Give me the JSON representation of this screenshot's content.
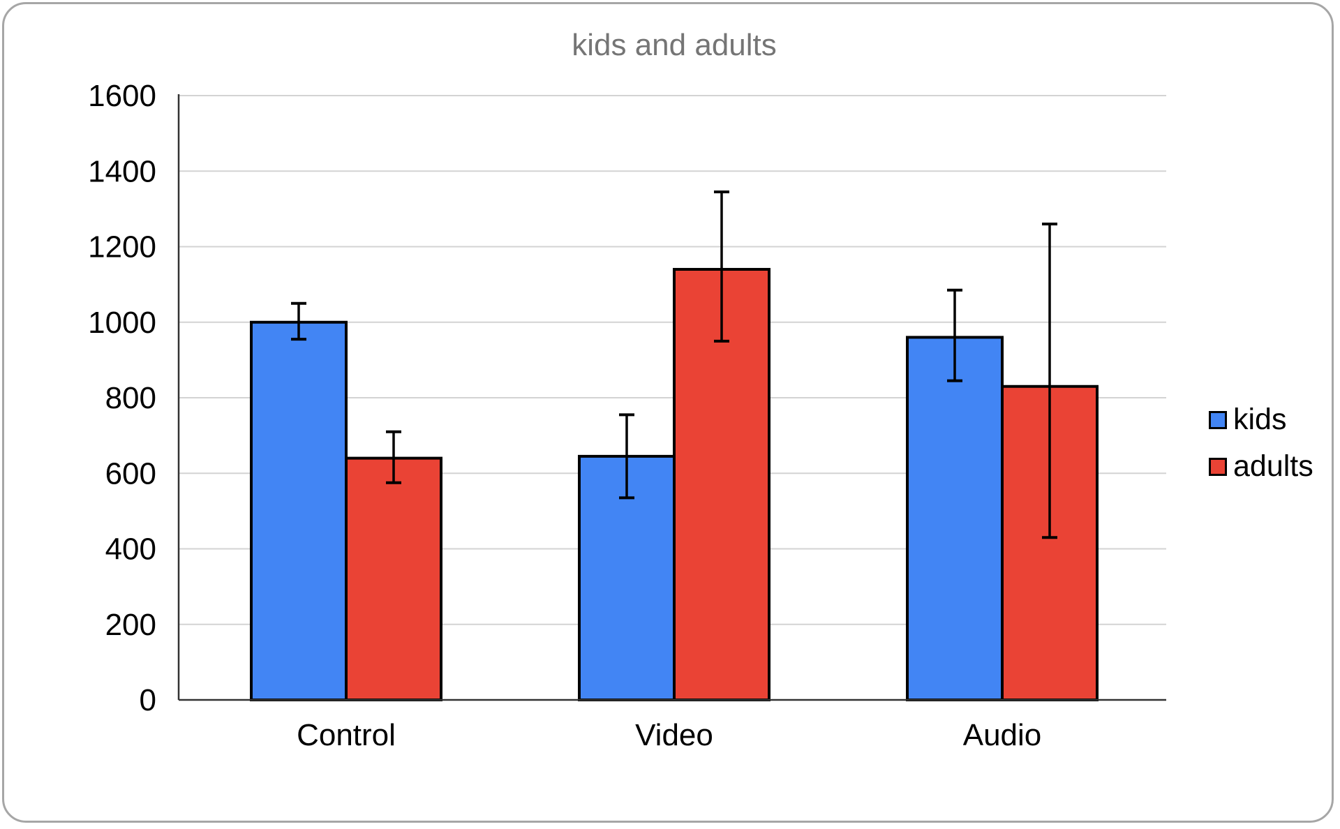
{
  "chart_data": {
    "type": "bar",
    "title": "kids and adults",
    "xlabel": "",
    "ylabel": "",
    "categories": [
      "Control",
      "Video",
      "Audio"
    ],
    "series": [
      {
        "name": "kids",
        "color": "#4285F4",
        "values": [
          1000,
          645,
          960
        ],
        "error_high": [
          1050,
          755,
          1085
        ],
        "error_low": [
          955,
          535,
          845
        ]
      },
      {
        "name": "adults",
        "color": "#EA4335",
        "values": [
          640,
          1140,
          830
        ],
        "error_high": [
          710,
          1345,
          1260
        ],
        "error_low": [
          575,
          950,
          430
        ]
      }
    ],
    "ylim": [
      0,
      1600
    ],
    "ytick_interval": 200,
    "ytick_labels": [
      "0",
      "200",
      "400",
      "600",
      "800",
      "1000",
      "1200",
      "1400",
      "1600"
    ],
    "grid": true,
    "legend_position": "right",
    "title_color": "#757575",
    "axis_color": "#333333",
    "gridline_color": "#d3d3d3",
    "bar_border_color": "#000000",
    "error_bar_color": "#000000",
    "tick_label_color": "#000000"
  }
}
